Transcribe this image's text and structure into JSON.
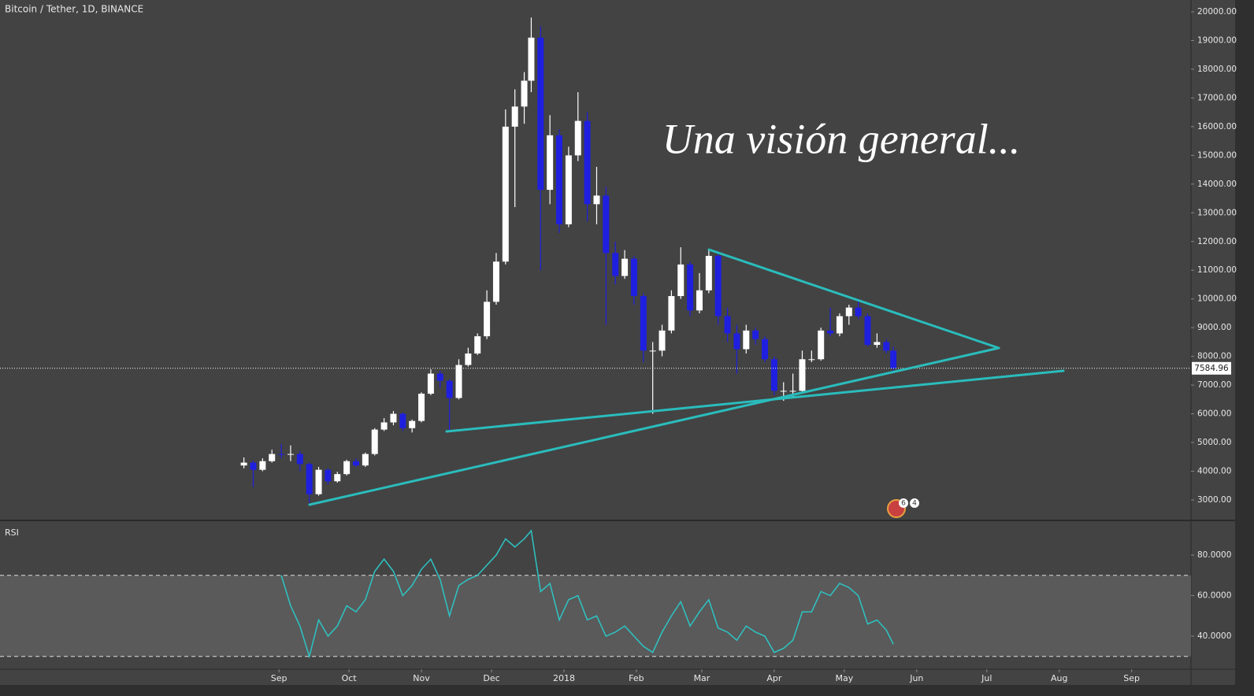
{
  "chart_data": [
    {
      "type": "candlestick",
      "title": "Bitcoin / Tether, 1D, BINANCE",
      "annotation": "Una visión general...",
      "x": [
        -15,
        -11,
        -7,
        -3,
        1,
        5,
        9,
        13,
        17,
        21,
        25,
        29,
        33,
        37,
        41,
        45,
        49,
        53,
        57,
        61,
        65,
        69,
        73,
        77,
        81,
        85,
        89,
        93,
        97,
        101,
        105,
        108,
        112,
        116,
        120,
        124,
        128,
        132,
        136,
        140,
        144,
        148,
        152,
        156,
        160,
        164,
        168,
        172,
        176,
        180,
        184,
        188,
        192,
        196,
        200,
        204,
        208,
        212,
        216,
        220,
        224,
        228,
        232,
        236,
        240,
        244,
        248,
        252,
        256,
        260,
        263
      ],
      "open": [
        4200,
        4300,
        4050,
        4350,
        4600,
        4580,
        4600,
        4250,
        3200,
        4050,
        3650,
        3900,
        4350,
        4200,
        4600,
        5450,
        5700,
        6000,
        5500,
        5750,
        6700,
        7400,
        7150,
        6550,
        7700,
        8100,
        8700,
        9900,
        11300,
        16000,
        16700,
        17600,
        19100,
        13800,
        15700,
        12600,
        15000,
        16200,
        13300,
        13600,
        11600,
        10800,
        11400,
        10100,
        8200,
        8200,
        8900,
        10100,
        11200,
        9600,
        10300,
        11500,
        9400,
        8800,
        8250,
        8900,
        8600,
        7900,
        6800,
        6800,
        6800,
        7900,
        7900,
        8900,
        8800,
        9400,
        9700,
        9400,
        8400,
        8500,
        8200
      ],
      "high": [
        4480,
        4380,
        4450,
        4750,
        4950,
        4900,
        4700,
        4300,
        4150,
        4100,
        3980,
        4400,
        4450,
        4650,
        5500,
        5850,
        6100,
        6050,
        5800,
        6750,
        7550,
        7500,
        7200,
        7900,
        8300,
        8800,
        10300,
        11600,
        16600,
        17300,
        17900,
        19800,
        19500,
        16400,
        15900,
        15300,
        17200,
        16500,
        14600,
        13900,
        12000,
        11700,
        11500,
        10200,
        8500,
        9100,
        10300,
        11800,
        11300,
        10900,
        11700,
        11600,
        9700,
        9100,
        9100,
        9000,
        8700,
        8000,
        7100,
        7400,
        8200,
        8200,
        9000,
        9700,
        9500,
        9800,
        10000,
        9500,
        8800,
        8600,
        8350
      ],
      "low": [
        4100,
        3450,
        4000,
        4300,
        4450,
        4350,
        4000,
        2900,
        3150,
        3550,
        3600,
        3850,
        4150,
        4150,
        4550,
        5400,
        5600,
        5400,
        5350,
        5700,
        6650,
        6900,
        5400,
        6500,
        7650,
        8050,
        8600,
        9800,
        11200,
        13200,
        16100,
        17200,
        11000,
        13300,
        12300,
        12500,
        14800,
        12700,
        12600,
        9100,
        10500,
        10700,
        9800,
        7800,
        6000,
        8000,
        8800,
        10000,
        9400,
        9500,
        10200,
        9100,
        8500,
        7400,
        8100,
        8400,
        7800,
        6650,
        6450,
        6600,
        6750,
        7800,
        7850,
        8700,
        8700,
        9100,
        9300,
        8350,
        8300,
        8100,
        7500
      ],
      "close": [
        4300,
        4050,
        4350,
        4600,
        4580,
        4600,
        4250,
        3200,
        4050,
        3650,
        3900,
        4350,
        4200,
        4600,
        5450,
        5700,
        6000,
        5500,
        5750,
        6700,
        7400,
        7150,
        6550,
        7700,
        8100,
        8700,
        9900,
        11300,
        16000,
        16700,
        17600,
        19100,
        13800,
        15700,
        12600,
        15000,
        16200,
        13300,
        13600,
        11600,
        10800,
        11400,
        10100,
        8200,
        8200,
        8900,
        10100,
        11200,
        9600,
        10300,
        11500,
        9400,
        8800,
        8250,
        8900,
        8600,
        7900,
        6800,
        6800,
        6800,
        7900,
        7900,
        8900,
        8800,
        9400,
        9700,
        9400,
        8400,
        8500,
        8200,
        7584.96
      ],
      "up_color": "#ffffff",
      "down_color": "#1f1fe0",
      "last_price": 7584.96,
      "xlim": [
        -119.4,
        390.4
      ],
      "xticks": [
        {
          "value": 0,
          "label": "Sep"
        },
        {
          "value": 30,
          "label": "Oct"
        },
        {
          "value": 61,
          "label": "Nov"
        },
        {
          "value": 91,
          "label": "Dec"
        },
        {
          "value": 122,
          "label": "2018"
        },
        {
          "value": 153,
          "label": "Feb"
        },
        {
          "value": 181,
          "label": "Mar"
        },
        {
          "value": 212,
          "label": "Apr"
        },
        {
          "value": 242,
          "label": "May"
        },
        {
          "value": 273,
          "label": "Jun"
        },
        {
          "value": 303,
          "label": "Jul"
        },
        {
          "value": 334,
          "label": "Aug"
        },
        {
          "value": 365,
          "label": "Sep"
        }
      ],
      "ylim": [
        2314,
        20411
      ],
      "yticks": [
        {
          "value": 20000,
          "label": "20000.00"
        },
        {
          "value": 19000,
          "label": "19000.00"
        },
        {
          "value": 18000,
          "label": "18000.00"
        },
        {
          "value": 17000,
          "label": "17000.00"
        },
        {
          "value": 16000,
          "label": "16000.00"
        },
        {
          "value": 15000,
          "label": "15000.00"
        },
        {
          "value": 14000,
          "label": "14000.00"
        },
        {
          "value": 13000,
          "label": "13000.00"
        },
        {
          "value": 12000,
          "label": "12000.00"
        },
        {
          "value": 11000,
          "label": "11000.00"
        },
        {
          "value": 10000,
          "label": "10000.00"
        },
        {
          "value": 9000,
          "label": "9000.00"
        },
        {
          "value": 8000,
          "label": "8000.00"
        },
        {
          "value": 7000,
          "label": "7000.00"
        },
        {
          "value": 6000,
          "label": "6000.00"
        },
        {
          "value": 5000,
          "label": "5000.00"
        },
        {
          "value": 4000,
          "label": "4000.00"
        },
        {
          "value": 3000,
          "label": "3000.00"
        }
      ],
      "badges": [
        "6",
        "4"
      ]
    },
    {
      "type": "line",
      "title": "RSI",
      "color": "#2ec4c4",
      "values": [
        null,
        null,
        null,
        null,
        70,
        55,
        45,
        30,
        48,
        40,
        45,
        55,
        52,
        58,
        72,
        78,
        72,
        60,
        65,
        73,
        78,
        68,
        50,
        65,
        68,
        70,
        75,
        80,
        88,
        84,
        88,
        92,
        62,
        66,
        48,
        58,
        60,
        48,
        50,
        40,
        42,
        45,
        40,
        35,
        32,
        42,
        50,
        57,
        45,
        52,
        58,
        44,
        42,
        38,
        45,
        42,
        40,
        32,
        34,
        38,
        52,
        52,
        62,
        60,
        66,
        64,
        60,
        46,
        48,
        43,
        36
      ],
      "band": [
        30,
        70
      ],
      "ylim": [
        23.7,
        96.7
      ],
      "yticks": [
        {
          "value": 80,
          "label": "80.0000"
        },
        {
          "value": 60,
          "label": "60.0000"
        },
        {
          "value": 40,
          "label": "40.0000"
        }
      ]
    }
  ]
}
